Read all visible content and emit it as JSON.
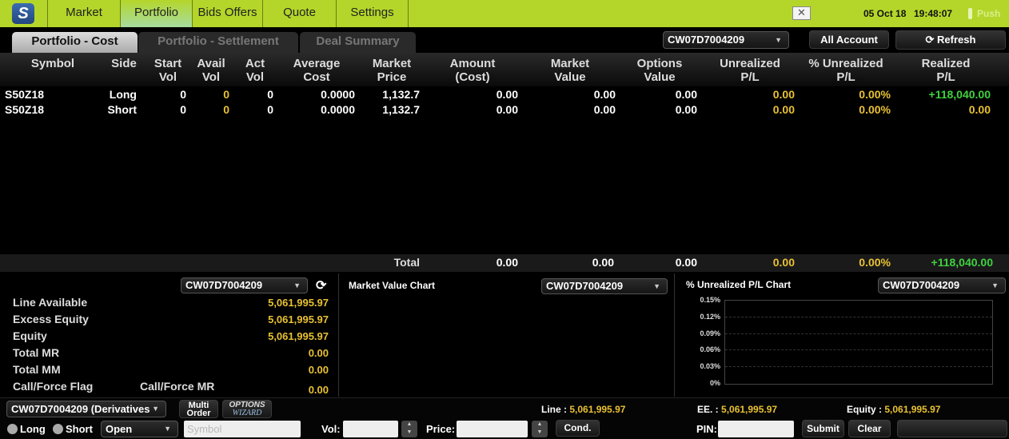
{
  "header": {
    "nav": [
      "Market",
      "Portfolio",
      "Bids Offers",
      "Quote",
      "Settings"
    ],
    "active_nav": "Portfolio",
    "date": "05 Oct 18",
    "time": "19:48:07",
    "push_label": "Push"
  },
  "subtabs": [
    "Portfolio - Cost",
    "Portfolio - Settlement",
    "Deal Summary"
  ],
  "toolbar": {
    "account": "CW07D7004209",
    "all_account": "All Account",
    "refresh": "Refresh"
  },
  "table": {
    "headers": [
      "Symbol",
      "Side",
      "Start\nVol",
      "Avail\nVol",
      "Act\nVol",
      "Average\nCost",
      "Market\nPrice",
      "Amount\n(Cost)",
      "Market\nValue",
      "Options\nValue",
      "Unrealized\nP/L",
      "% Unrealized\nP/L",
      "Realized\nP/L"
    ],
    "rows": [
      [
        "S50Z18",
        "Long",
        "0",
        "0",
        "0",
        "0.0000",
        "1,132.7",
        "0.00",
        "0.00",
        "0.00",
        "0.00",
        "0.00%",
        "+118,040.00"
      ],
      [
        "S50Z18",
        "Short",
        "0",
        "0",
        "0",
        "0.0000",
        "1,132.7",
        "0.00",
        "0.00",
        "0.00",
        "0.00",
        "0.00%",
        "0.00"
      ]
    ],
    "total": {
      "label": "Total",
      "amount": "0.00",
      "market_value": "0.00",
      "options_value": "0.00",
      "unrealized": "0.00",
      "pct_unrealized": "0.00%",
      "realized": "+118,040.00"
    }
  },
  "summary": {
    "account": "CW07D7004209",
    "items": [
      {
        "label": "Line Available",
        "value": "5,061,995.97"
      },
      {
        "label": "Excess Equity",
        "value": "5,061,995.97"
      },
      {
        "label": "Equity",
        "value": "5,061,995.97"
      },
      {
        "label": "Total MR",
        "value": "0.00"
      },
      {
        "label": "Total MM",
        "value": "0.00"
      },
      {
        "label": "Call/Force Flag",
        "label2": "Call/Force MR",
        "value": "0.00"
      }
    ]
  },
  "market_value_chart": {
    "title": "Market Value Chart",
    "account": "CW07D7004209"
  },
  "chart_data": {
    "type": "line",
    "title": "% Unrealized P/L Chart",
    "account": "CW07D7004209",
    "yticks": [
      "0.15%",
      "0.12%",
      "0.09%",
      "0.06%",
      "0.03%",
      "0%"
    ],
    "ylim": [
      0,
      0.15
    ],
    "grid": true,
    "series": []
  },
  "order": {
    "account": "CW07D7004209 (Derivatives",
    "multi_order": "Multi\nOrder",
    "options_wizard": "OPTIONS",
    "options_wizard2": "WIZARD",
    "long": "Long",
    "short": "Short",
    "position": "Open",
    "symbol_placeholder": "Symbol",
    "vol_label": "Vol:",
    "price_label": "Price:",
    "cond": "Cond.",
    "line_label": "Line :",
    "line_value": "5,061,995.97",
    "ee_label": "EE. :",
    "ee_value": "5,061,995.97",
    "equity_label": "Equity :",
    "equity_value": "5,061,995.97",
    "pin_label": "PIN:",
    "submit": "Submit",
    "clear": "Clear"
  }
}
